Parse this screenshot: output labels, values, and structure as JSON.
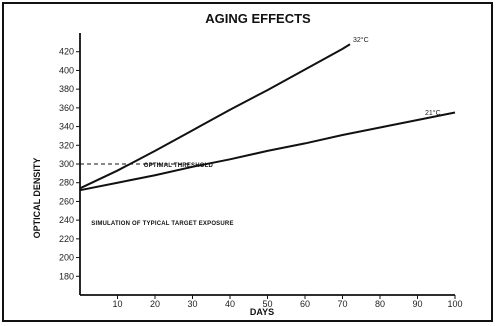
{
  "chart_data": {
    "type": "line",
    "title": "AGING EFFECTS",
    "xlabel": "DAYS",
    "ylabel": "OPTICAL DENSITY",
    "xlim": [
      0,
      100
    ],
    "ylim": [
      160,
      440
    ],
    "x_ticks": [
      10,
      20,
      30,
      40,
      50,
      60,
      70,
      80,
      90,
      100
    ],
    "x_tick_labels": [
      "10",
      "20",
      "30",
      "40",
      "50",
      "60",
      "70",
      "80",
      "90",
      "100"
    ],
    "y_ticks": [
      180,
      200,
      220,
      240,
      260,
      280,
      300,
      320,
      340,
      360,
      380,
      400,
      420
    ],
    "y_tick_labels": [
      "180",
      "200",
      "220",
      "240",
      "260",
      "280",
      "300",
      "320",
      "340",
      "360",
      "380",
      "400",
      "420"
    ],
    "grid": false,
    "series": [
      {
        "name": "32°C",
        "x": [
          0,
          10,
          20,
          30,
          40,
          50,
          60,
          70,
          72
        ],
        "y": [
          274,
          293,
          314,
          336,
          358,
          379,
          401,
          423,
          428
        ]
      },
      {
        "name": "21°C",
        "x": [
          0,
          10,
          20,
          30,
          40,
          50,
          60,
          70,
          80,
          90,
          100
        ],
        "y": [
          272,
          280,
          288,
          297,
          305,
          314,
          322,
          331,
          339,
          347,
          355
        ]
      }
    ],
    "annotations": {
      "optimal_threshold": {
        "text": "OPTIMAL THRESHOLD",
        "y": 300,
        "x_range": [
          0,
          30
        ]
      },
      "simulation": {
        "text": "SIMULATION OF TYPICAL TARGET EXPOSURE"
      }
    }
  }
}
